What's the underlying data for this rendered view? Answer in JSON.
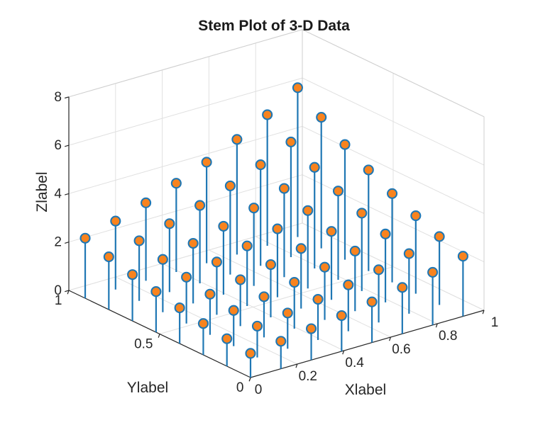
{
  "chart_data": {
    "type": "stem3d",
    "title": "Stem Plot of 3-D Data",
    "x_axis": {
      "label": "Xlabel",
      "range": [
        0,
        1
      ],
      "tick_values": [
        0,
        0.2,
        0.4,
        0.6,
        0.8,
        1
      ],
      "tick_labels": [
        "0",
        "0.2",
        "0.4",
        "0.6",
        "0.8",
        "1"
      ]
    },
    "y_axis": {
      "label": "Ylabel",
      "range": [
        0,
        1
      ],
      "tick_values": [
        0,
        0.5,
        1
      ],
      "tick_labels": [
        "0",
        "0.5",
        "1"
      ]
    },
    "z_axis": {
      "label": "Zlabel",
      "range": [
        0,
        8
      ],
      "tick_values": [
        0,
        2,
        4,
        6,
        8
      ],
      "tick_labels": [
        "0",
        "2",
        "4",
        "6",
        "8"
      ]
    },
    "x": [
      0,
      0.13,
      0.26,
      0.39,
      0.52,
      0.65,
      0.78,
      0.91
    ],
    "y": [
      0,
      0.13,
      0.26,
      0.39,
      0.52,
      0.65,
      0.78,
      0.91
    ],
    "z_function": "exp(x+y)",
    "z": [
      [
        1.0,
        1.139,
        1.297,
        1.477,
        1.682,
        1.916,
        2.181,
        2.484
      ],
      [
        1.139,
        1.297,
        1.477,
        1.682,
        1.916,
        2.181,
        2.484,
        2.829
      ],
      [
        1.297,
        1.477,
        1.682,
        1.916,
        2.181,
        2.484,
        2.829,
        3.222
      ],
      [
        1.477,
        1.682,
        1.916,
        2.181,
        2.484,
        2.829,
        3.222,
        3.669
      ],
      [
        1.682,
        1.916,
        2.181,
        2.484,
        2.829,
        3.222,
        3.669,
        4.179
      ],
      [
        1.916,
        2.181,
        2.484,
        2.829,
        3.222,
        3.669,
        4.179,
        4.759
      ],
      [
        2.181,
        2.484,
        2.829,
        3.222,
        3.669,
        4.179,
        4.759,
        5.419
      ],
      [
        2.484,
        2.829,
        3.222,
        3.669,
        4.179,
        4.759,
        5.419,
        6.172
      ]
    ],
    "legend": null,
    "grid": "on",
    "style": {
      "stem_color": "#1f77b4",
      "marker_fill": "#f8831e",
      "marker_edge": "#1f77b4",
      "grid_color": "#e0e0e0",
      "box_color": "#cfcfcf",
      "axis_color": "#262626",
      "text_color": "#262626",
      "background": "#ffffff"
    }
  }
}
